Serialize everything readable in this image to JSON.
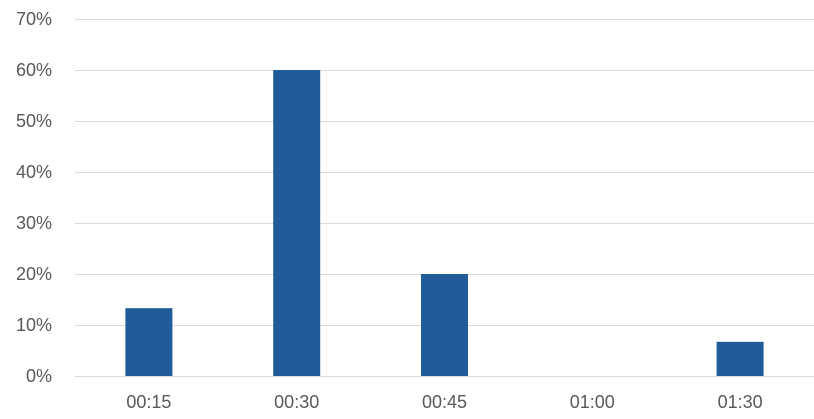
{
  "chart_data": {
    "type": "bar",
    "categories": [
      "00:15",
      "00:30",
      "00:45",
      "01:00",
      "01:30"
    ],
    "values": [
      13.3,
      60,
      20,
      0,
      6.7
    ],
    "title": "",
    "xlabel": "",
    "ylabel": "",
    "ylim": [
      0,
      70
    ],
    "yticks": [
      0,
      10,
      20,
      30,
      40,
      50,
      60,
      70
    ],
    "ytick_labels": [
      "0%",
      "10%",
      "20%",
      "30%",
      "40%",
      "50%",
      "60%",
      "70%"
    ],
    "grid": true,
    "legend": "none",
    "bar_color": "#1f5c99"
  }
}
